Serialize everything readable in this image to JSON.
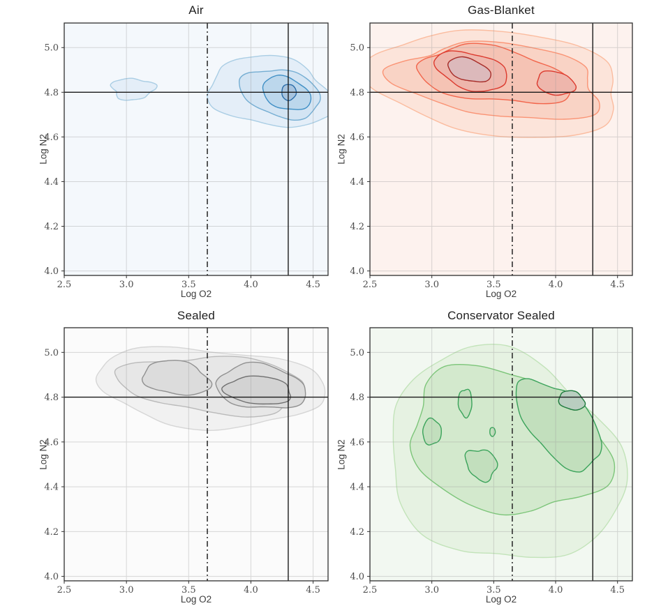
{
  "figure": {
    "background": "#ffffff",
    "layout": "2x2 grid of bivariate KDE contour plots"
  },
  "chart_data": [
    {
      "type": "kde_contour",
      "title": "Air",
      "xlabel": "Log O2",
      "ylabel": "Log N2",
      "xlim": [
        2.5,
        4.62
      ],
      "ylim": [
        3.98,
        5.11
      ],
      "xticks": [
        2.5,
        3.0,
        3.5,
        4.0,
        4.5
      ],
      "yticks": [
        4.0,
        4.2,
        4.4,
        4.6,
        4.8,
        5.0
      ],
      "grid": true,
      "legend": false,
      "reference_lines": {
        "hline_y": 4.8,
        "vline_solid_x": 4.3,
        "vline_dashdot_x": 3.65
      },
      "peaks": [
        [
          4.3,
          4.8
        ],
        [
          3.05,
          4.81
        ]
      ],
      "colors": {
        "bg": "#f4f8fc",
        "fills": [
          "#e4eef8",
          "#d3e4f3",
          "#bcd7ec",
          "#a8c4de"
        ],
        "strokes": [
          "#a9cde4",
          "#74add2",
          "#3f8fc5",
          "#2b6ca8"
        ]
      },
      "contours": [
        {
          "level": 0,
          "cx": 4.16,
          "cy": 4.8,
          "rx": 0.5,
          "ry": 0.155,
          "rot": -4,
          "wobble": 0.13,
          "seed": 3
        },
        {
          "level": 0,
          "cx": 3.05,
          "cy": 4.815,
          "rx": 0.17,
          "ry": 0.048,
          "rot": 0,
          "wobble": 0.2,
          "seed": 7
        },
        {
          "level": 1,
          "cx": 4.24,
          "cy": 4.795,
          "rx": 0.325,
          "ry": 0.105,
          "rot": -6,
          "wobble": 0.1,
          "seed": 5
        },
        {
          "level": 2,
          "cx": 4.285,
          "cy": 4.795,
          "rx": 0.195,
          "ry": 0.072,
          "rot": -8,
          "wobble": 0.08,
          "seed": 2
        },
        {
          "level": 3,
          "cx": 4.305,
          "cy": 4.8,
          "rx": 0.058,
          "ry": 0.036,
          "rot": 0,
          "wobble": 0.06,
          "seed": 1
        }
      ]
    },
    {
      "type": "kde_contour",
      "title": "Gas-Blanket",
      "xlabel": "Log O2",
      "ylabel": "Log N2",
      "xlim": [
        2.5,
        4.62
      ],
      "ylim": [
        3.98,
        5.11
      ],
      "xticks": [
        2.5,
        3.0,
        3.5,
        4.0,
        4.5
      ],
      "yticks": [
        4.0,
        4.2,
        4.4,
        4.6,
        4.8,
        5.0
      ],
      "grid": true,
      "legend": false,
      "reference_lines": {
        "hline_y": 4.8,
        "vline_solid_x": 4.3,
        "vline_dashdot_x": 3.65
      },
      "peaks": [
        [
          3.3,
          4.9
        ],
        [
          4.0,
          4.84
        ]
      ],
      "colors": {
        "bg": "#fdf2ee",
        "fills": [
          "#fce4da",
          "#f9d3c5",
          "#f5c3b4",
          "#eeb6ac",
          "#dcb9bb"
        ],
        "strokes": [
          "#fbbc9f",
          "#fa9374",
          "#f2644a",
          "#dc392d",
          "#a72c28"
        ]
      },
      "contours": [
        {
          "level": 0,
          "cx": 3.53,
          "cy": 4.84,
          "rx": 1.02,
          "ry": 0.235,
          "rot": -3,
          "wobble": 0.1,
          "seed": 11
        },
        {
          "level": 1,
          "cx": 3.55,
          "cy": 4.85,
          "rx": 0.83,
          "ry": 0.165,
          "rot": -3,
          "wobble": 0.16,
          "seed": 4
        },
        {
          "level": 2,
          "cx": 3.5,
          "cy": 4.875,
          "rx": 0.62,
          "ry": 0.12,
          "rot": -4,
          "wobble": 0.15,
          "seed": 9
        },
        {
          "level": 3,
          "cx": 3.32,
          "cy": 4.895,
          "rx": 0.295,
          "ry": 0.082,
          "rot": -7,
          "wobble": 0.1,
          "seed": 6
        },
        {
          "level": 3,
          "cx": 4.0,
          "cy": 4.84,
          "rx": 0.155,
          "ry": 0.052,
          "rot": -5,
          "wobble": 0.09,
          "seed": 8
        },
        {
          "level": 4,
          "cx": 3.3,
          "cy": 4.9,
          "rx": 0.175,
          "ry": 0.05,
          "rot": -8,
          "wobble": 0.08,
          "seed": 2
        }
      ]
    },
    {
      "type": "kde_contour",
      "title": "Sealed",
      "xlabel": "Log O2",
      "ylabel": "Log N2",
      "xlim": [
        2.5,
        4.62
      ],
      "ylim": [
        3.98,
        5.11
      ],
      "xticks": [
        2.5,
        3.0,
        3.5,
        4.0,
        4.5
      ],
      "yticks": [
        4.0,
        4.2,
        4.4,
        4.6,
        4.8,
        5.0
      ],
      "grid": true,
      "legend": false,
      "reference_lines": {
        "hline_y": 4.8,
        "vline_solid_x": 4.3,
        "vline_dashdot_x": 3.65
      },
      "peaks": [
        [
          4.05,
          4.84
        ],
        [
          3.4,
          4.88
        ]
      ],
      "colors": {
        "bg": "#fbfbfb",
        "fills": [
          "#f1f1f1",
          "#e7e7e7",
          "#dcdcdc",
          "#d3d3d3"
        ],
        "strokes": [
          "#d6d6d6",
          "#bababa",
          "#909090",
          "#6f6f6f"
        ]
      },
      "contours": [
        {
          "level": 0,
          "cx": 3.67,
          "cy": 4.845,
          "rx": 0.92,
          "ry": 0.175,
          "rot": -2,
          "wobble": 0.12,
          "seed": 13
        },
        {
          "level": 1,
          "cx": 3.7,
          "cy": 4.855,
          "rx": 0.745,
          "ry": 0.125,
          "rot": -2,
          "wobble": 0.15,
          "seed": 5
        },
        {
          "level": 2,
          "cx": 3.4,
          "cy": 4.885,
          "rx": 0.27,
          "ry": 0.075,
          "rot": -4,
          "wobble": 0.12,
          "seed": 3
        },
        {
          "level": 2,
          "cx": 4.08,
          "cy": 4.845,
          "rx": 0.36,
          "ry": 0.098,
          "rot": -3,
          "wobble": 0.12,
          "seed": 9
        },
        {
          "level": 3,
          "cx": 4.06,
          "cy": 4.83,
          "rx": 0.27,
          "ry": 0.062,
          "rot": -2,
          "wobble": 0.1,
          "seed": 4
        }
      ]
    },
    {
      "type": "kde_contour",
      "title": "Conservator Sealed",
      "xlabel": "Log O2",
      "ylabel": "Log N2",
      "xlim": [
        2.5,
        4.62
      ],
      "ylim": [
        3.98,
        5.11
      ],
      "xticks": [
        2.5,
        3.0,
        3.5,
        4.0,
        4.5
      ],
      "yticks": [
        4.0,
        4.2,
        4.4,
        4.6,
        4.8,
        5.0
      ],
      "grid": true,
      "legend": false,
      "reference_lines": {
        "hline_y": 4.8,
        "vline_solid_x": 4.3,
        "vline_dashdot_x": 3.65
      },
      "peaks": [
        [
          4.13,
          4.79
        ],
        [
          3.0,
          4.65
        ],
        [
          3.27,
          4.78
        ],
        [
          3.4,
          4.5
        ]
      ],
      "colors": {
        "bg": "#f2f8f1",
        "fills": [
          "#e6f2e2",
          "#d3e9cd",
          "#c2dfbd",
          "#b9cec0"
        ],
        "strokes": [
          "#c2e3b9",
          "#7cc579",
          "#3aa35a",
          "#1d7a3c"
        ]
      },
      "contours": [
        {
          "level": 0,
          "cx": 3.58,
          "cy": 4.53,
          "rx": 0.95,
          "ry": 0.465,
          "rot": -6,
          "wobble": 0.1,
          "seed": 21
        },
        {
          "level": 1,
          "cx": 3.6,
          "cy": 4.6,
          "rx": 0.8,
          "ry": 0.315,
          "rot": -6,
          "wobble": 0.13,
          "seed": 8
        },
        {
          "level": 2,
          "cx": 4.03,
          "cy": 4.68,
          "rx": 0.365,
          "ry": 0.155,
          "rot": -22,
          "wobble": 0.12,
          "seed": 5
        },
        {
          "level": 2,
          "cx": 3.0,
          "cy": 4.645,
          "rx": 0.075,
          "ry": 0.058,
          "rot": 0,
          "wobble": 0.1,
          "seed": 2
        },
        {
          "level": 2,
          "cx": 3.27,
          "cy": 4.775,
          "rx": 0.055,
          "ry": 0.062,
          "rot": 10,
          "wobble": 0.12,
          "seed": 6
        },
        {
          "level": 2,
          "cx": 3.4,
          "cy": 4.5,
          "rx": 0.125,
          "ry": 0.068,
          "rot": -8,
          "wobble": 0.18,
          "seed": 12
        },
        {
          "level": 2,
          "cx": 3.49,
          "cy": 4.645,
          "rx": 0.022,
          "ry": 0.02,
          "rot": 0,
          "wobble": 0.05,
          "seed": 1
        },
        {
          "level": 3,
          "cx": 4.13,
          "cy": 4.785,
          "rx": 0.105,
          "ry": 0.042,
          "rot": -6,
          "wobble": 0.1,
          "seed": 3
        }
      ]
    }
  ],
  "style_tokens": {
    "spine_color": "#2e2e2e",
    "grid_color": "#9b9b9b",
    "ref_line_color": "#1a1a1a",
    "dashdot_color": "#2f2f2f",
    "tick_label_color": "#4c4c4c",
    "title_color": "#1f1f1f"
  }
}
